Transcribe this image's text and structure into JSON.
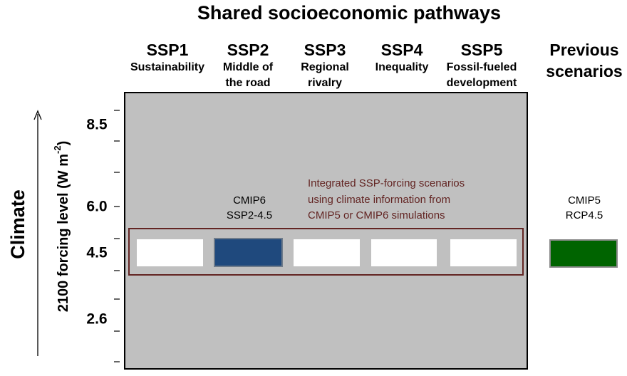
{
  "header": {
    "title": "Shared socioeconomic pathways"
  },
  "columns": [
    {
      "name": "SSP1",
      "subtitle": [
        "Sustainability"
      ]
    },
    {
      "name": "SSP2",
      "subtitle": [
        "Middle of",
        "the road"
      ]
    },
    {
      "name": "SSP3",
      "subtitle": [
        "Regional",
        "rivalry"
      ]
    },
    {
      "name": "SSP4",
      "subtitle": [
        "Inequality"
      ]
    },
    {
      "name": "SSP5",
      "subtitle": [
        "Fossil-fueled",
        "development"
      ]
    }
  ],
  "previous": {
    "name": [
      "Previous",
      "scenarios"
    ],
    "label": [
      "CMIP5",
      "RCP4.5"
    ]
  },
  "y_axis": {
    "side_label": "Climate",
    "title": "2100 forcing level (W m",
    "title_sup": "-2",
    "title_end": ")",
    "ticks": [
      "8.5",
      "6.0",
      "4.5",
      "2.6"
    ]
  },
  "highlight": {
    "label": [
      "CMIP6",
      "SSP2-4.5"
    ]
  },
  "annotation": [
    "Integrated SSP-forcing scenarios",
    "using climate information from",
    "CMIP5 or CMIP6 simulations"
  ]
}
